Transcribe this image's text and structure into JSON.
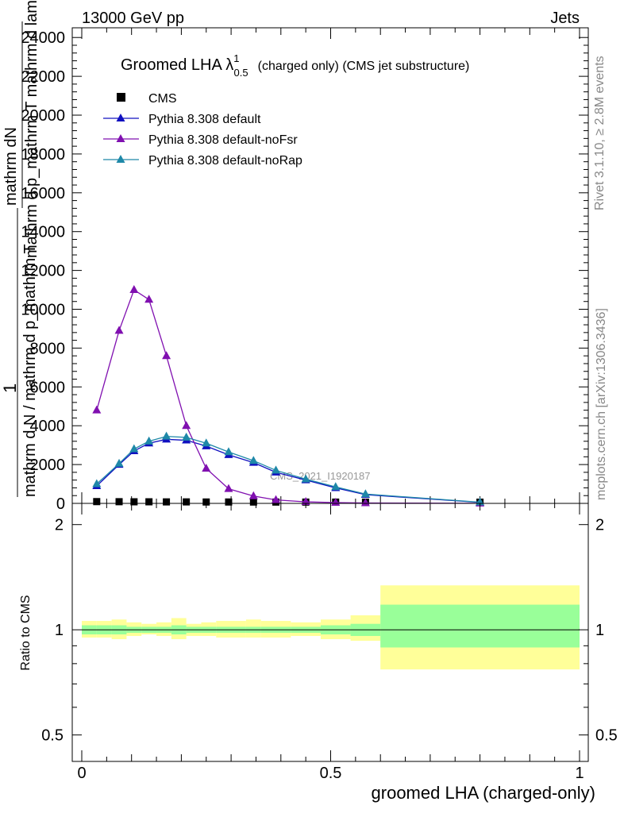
{
  "header": {
    "left": "13000 GeV pp",
    "right": "Jets"
  },
  "side_labels": {
    "rivet": "Rivet 3.1.10, ≥ 2.8M events",
    "mcplots": "mcplots.cern.ch [arXiv:1306.3436]"
  },
  "colors": {
    "cms": "#000000",
    "default": "#1010c0",
    "noFsr": "#8010b0",
    "noRap": "#1e88a8",
    "band_inner": "#99ff99",
    "band_outer": "#ffff99"
  },
  "chart_data": [
    {
      "type": "line",
      "title": "Groomed LHA λ¹₀.₅ (charged only) (CMS jet substructure)",
      "title_parts": {
        "main": "Groomed LHA λ",
        "sup": "1",
        "sub": "0.5",
        "rest": "(charged only) (CMS jet substructure)"
      },
      "ylabel_lines": [
        "mathrm dN",
        "mathrm d p_mathrm T  mathrm d lambda",
        "1",
        "mathrm d N / mathrm d p_mathrm T"
      ],
      "xlabel": "groomed LHA (charged-only)",
      "xlim": [
        0,
        1
      ],
      "ylim": [
        0,
        24500
      ],
      "yticks": [
        "0",
        "2000",
        "4000",
        "6000",
        "8000",
        "10000",
        "12000",
        "14000",
        "16000",
        "18000",
        "20000",
        "22000",
        "24000"
      ],
      "legend_position": "top-left",
      "watermark": "CMS_2021_I1920187",
      "bin_edges": [
        0.0,
        0.06,
        0.09,
        0.12,
        0.15,
        0.18,
        0.24,
        0.27,
        0.33,
        0.36,
        0.42,
        0.48,
        0.54,
        0.6,
        1.0
      ],
      "series": [
        {
          "name": "CMS",
          "marker": "square",
          "x": [
            0.03,
            0.075,
            0.105,
            0.135,
            0.17,
            0.21,
            0.25,
            0.295,
            0.345,
            0.39,
            0.45,
            0.51,
            0.57,
            0.8
          ],
          "values": [
            30,
            25,
            20,
            20,
            15,
            15,
            10,
            10,
            8,
            6,
            5,
            4,
            3,
            1
          ]
        },
        {
          "name": "Pythia 8.308 default",
          "marker": "triangle",
          "x": [
            0.03,
            0.075,
            0.105,
            0.135,
            0.17,
            0.21,
            0.25,
            0.295,
            0.345,
            0.39,
            0.45,
            0.51,
            0.57,
            0.8
          ],
          "values": [
            900,
            2000,
            2700,
            3100,
            3300,
            3250,
            2950,
            2500,
            2100,
            1600,
            1200,
            800,
            450,
            50
          ]
        },
        {
          "name": "Pythia 8.308 default-noFsr",
          "marker": "triangle",
          "x": [
            0.03,
            0.075,
            0.105,
            0.135,
            0.17,
            0.21,
            0.25,
            0.295,
            0.345,
            0.39,
            0.45,
            0.51,
            0.57,
            0.8
          ],
          "values": [
            4800,
            8900,
            11000,
            10500,
            7600,
            4000,
            1800,
            750,
            380,
            180,
            80,
            40,
            20,
            5
          ]
        },
        {
          "name": "Pythia 8.308 default-noRap",
          "marker": "triangle",
          "x": [
            0.03,
            0.075,
            0.105,
            0.135,
            0.17,
            0.21,
            0.25,
            0.295,
            0.345,
            0.39,
            0.45,
            0.51,
            0.57,
            0.8
          ],
          "values": [
            1000,
            2050,
            2800,
            3200,
            3450,
            3400,
            3100,
            2650,
            2200,
            1700,
            1250,
            850,
            480,
            60
          ]
        }
      ]
    },
    {
      "type": "area",
      "ylabel": "Ratio to CMS",
      "xlim": [
        0,
        1
      ],
      "ylim": [
        0.42,
        2.3
      ],
      "log_scale": "y",
      "yticks": [
        "0.5",
        "1",
        "2"
      ],
      "xticks": [
        "0",
        "0.5",
        "1"
      ],
      "bin_edges": [
        0.0,
        0.03,
        0.06,
        0.09,
        0.12,
        0.15,
        0.18,
        0.21,
        0.24,
        0.27,
        0.33,
        0.36,
        0.42,
        0.48,
        0.54,
        0.6,
        1.0
      ],
      "band_inner": [
        [
          0.97,
          1.03
        ],
        [
          0.97,
          1.03
        ],
        [
          0.97,
          1.03
        ],
        [
          0.98,
          1.02
        ],
        [
          0.98,
          1.02
        ],
        [
          0.98,
          1.02
        ],
        [
          0.97,
          1.03
        ],
        [
          0.98,
          1.02
        ],
        [
          0.98,
          1.02
        ],
        [
          0.98,
          1.02
        ],
        [
          0.98,
          1.02
        ],
        [
          0.98,
          1.02
        ],
        [
          0.98,
          1.02
        ],
        [
          0.97,
          1.03
        ],
        [
          0.96,
          1.04
        ],
        [
          0.89,
          1.18
        ]
      ],
      "band_outer": [
        [
          0.95,
          1.06
        ],
        [
          0.95,
          1.06
        ],
        [
          0.94,
          1.07
        ],
        [
          0.96,
          1.05
        ],
        [
          0.97,
          1.04
        ],
        [
          0.96,
          1.05
        ],
        [
          0.94,
          1.08
        ],
        [
          0.96,
          1.04
        ],
        [
          0.96,
          1.05
        ],
        [
          0.95,
          1.06
        ],
        [
          0.95,
          1.07
        ],
        [
          0.95,
          1.06
        ],
        [
          0.96,
          1.05
        ],
        [
          0.94,
          1.07
        ],
        [
          0.93,
          1.1
        ],
        [
          0.77,
          1.34
        ]
      ],
      "reference": 1
    }
  ]
}
